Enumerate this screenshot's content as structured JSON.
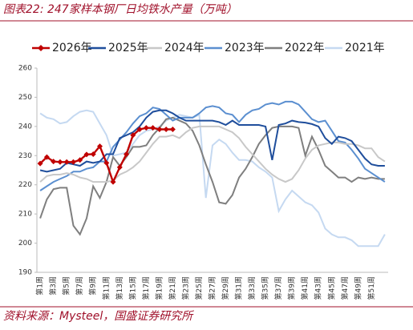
{
  "chart_data": {
    "type": "line",
    "title": "图表22: 247家样本钢厂日均铁水产量（万吨）",
    "source": "资料来源：Mysteel，国盛证券研究所",
    "categories": [
      "第1周",
      null,
      "第3周",
      null,
      "第5周",
      null,
      "第7周",
      null,
      "第9周",
      null,
      "第11周",
      null,
      "第13周",
      null,
      "第15周",
      null,
      "第17周",
      null,
      "第19周",
      null,
      "第21周",
      null,
      "第23周",
      null,
      "第25周",
      null,
      "第27周",
      null,
      "第29周",
      null,
      "第31周",
      null,
      "第33周",
      null,
      "第35周",
      null,
      "第37周",
      null,
      "第39周",
      null,
      "第41周",
      null,
      "第43周",
      null,
      "第45周",
      null,
      "第47周",
      null,
      "第49周",
      null,
      "第51周",
      null,
      null
    ],
    "ylim": [
      190,
      260
    ],
    "yticks": [
      190,
      200,
      210,
      220,
      230,
      240,
      250,
      260
    ],
    "grid": false,
    "legend": "top",
    "series": [
      {
        "name": "2026年",
        "color": "#c00000",
        "marker": "diamond",
        "values": [
          227.3,
          229.5,
          228,
          227.8,
          227.8,
          227.8,
          228.5,
          230.4,
          230.5,
          233.2,
          227.5,
          221,
          226,
          230.5,
          237,
          239,
          239.5,
          239.5,
          239,
          239,
          239,
          null,
          null,
          null,
          null,
          null,
          null,
          null,
          null,
          null,
          null,
          null,
          null,
          null,
          null,
          null,
          null,
          null,
          null,
          null,
          null,
          null,
          null,
          null,
          null,
          null,
          null,
          null,
          null,
          null,
          null,
          null,
          null
        ]
      },
      {
        "name": "2025年",
        "color": "#1f4e9c",
        "values": [
          225,
          224.5,
          225,
          225.5,
          227.5,
          227,
          226.5,
          228,
          227.5,
          228,
          230.5,
          230.5,
          236,
          237,
          238,
          240,
          243,
          245,
          245.5,
          245.5,
          244.5,
          243,
          242,
          242,
          242,
          242,
          242,
          241.5,
          240.5,
          242,
          240.5,
          240.5,
          240.5,
          240.5,
          240,
          228.5,
          240.5,
          241,
          242,
          241.5,
          241.3,
          240.8,
          240,
          236,
          234,
          236.5,
          236,
          235,
          232,
          229,
          227,
          226.5,
          226.5
        ]
      },
      {
        "name": "2024年",
        "color": "#c8c8c8",
        "values": [
          221,
          223,
          223.5,
          223.5,
          224,
          223.5,
          222.5,
          222,
          221,
          221,
          221,
          221.5,
          223.5,
          224.5,
          226,
          228,
          231,
          234,
          236.5,
          236.5,
          237,
          236,
          238,
          239.5,
          240,
          240,
          240,
          240,
          239,
          238,
          236,
          233,
          230.5,
          228,
          225.5,
          223.5,
          222,
          221,
          222,
          225,
          229,
          232,
          233.5,
          234,
          234.5,
          234.5,
          234,
          234,
          233.5,
          232.5,
          232.5,
          229.5,
          228
        ]
      },
      {
        "name": "2023年",
        "color": "#5b8fd0",
        "values": [
          218,
          219.5,
          221,
          222,
          223,
          224.5,
          224.5,
          225.5,
          226,
          228,
          228,
          233,
          235.5,
          238,
          241,
          243.5,
          244.5,
          246.5,
          246,
          244,
          242,
          243,
          243,
          243,
          244.5,
          246.5,
          247,
          246.5,
          244.5,
          244,
          241.5,
          244,
          245.5,
          246,
          247.5,
          248,
          247.5,
          248.5,
          248.5,
          247.5,
          245,
          242.5,
          241.5,
          242,
          238.5,
          235,
          234.5,
          232,
          229,
          225.5,
          224,
          222.5,
          221
        ]
      },
      {
        "name": "2022年",
        "color": "#7f7f7f",
        "values": [
          208.5,
          215,
          218.5,
          219,
          219,
          206,
          203,
          208.5,
          219.5,
          215.5,
          221,
          229.5,
          226.5,
          229.5,
          233,
          233,
          233.5,
          237,
          239.5,
          242.5,
          243,
          242,
          241,
          238.5,
          233.5,
          227,
          221,
          214,
          213.5,
          216.5,
          222.5,
          225.5,
          229.5,
          234,
          237,
          239.5,
          240,
          240,
          240,
          239.5,
          230,
          236.5,
          232,
          226.5,
          224.5,
          222.5,
          222.5,
          221,
          222.5,
          222,
          222.5,
          222,
          222
        ]
      },
      {
        "name": "2021年",
        "color": "#c5d9f1",
        "values": [
          244.5,
          243,
          242.5,
          241,
          241.5,
          243.5,
          245,
          245.5,
          245,
          241,
          237,
          230,
          230.5,
          231,
          234,
          237,
          238.5,
          239,
          240,
          242,
          243,
          244,
          243.5,
          243,
          244,
          215.5,
          233.5,
          235.5,
          234,
          231,
          228.5,
          228.5,
          228,
          226,
          224.5,
          222.5,
          211,
          215,
          218,
          216,
          214,
          213,
          210.5,
          205,
          203,
          202,
          202,
          201,
          199,
          199,
          199,
          199,
          203
        ]
      }
    ]
  }
}
